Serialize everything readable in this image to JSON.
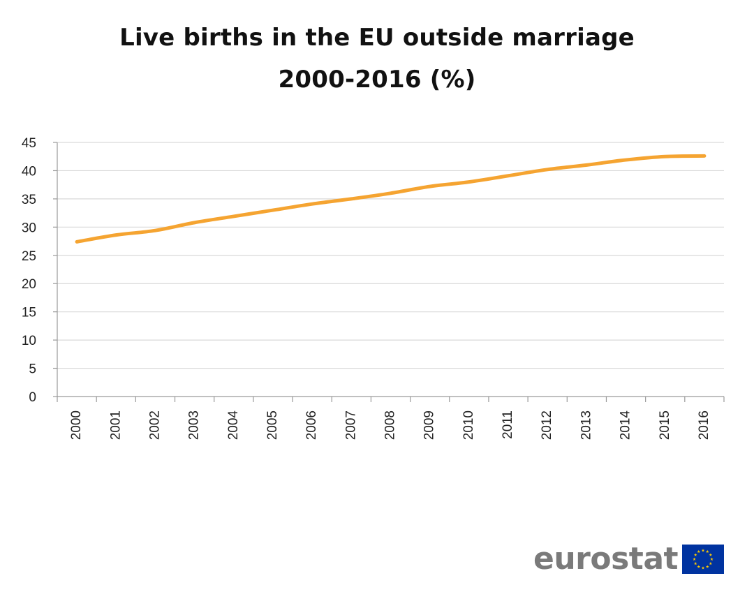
{
  "chart_data": {
    "type": "line",
    "title_line1": "Live births in the EU outside marriage",
    "title_line2": "2000-2016 (%)",
    "categories": [
      "2000",
      "2001",
      "2002",
      "2003",
      "2004",
      "2005",
      "2006",
      "2007",
      "2008",
      "2009",
      "2010",
      "2011",
      "2012",
      "2013",
      "2014",
      "2015",
      "2016"
    ],
    "series": [
      {
        "values": [
          27.4,
          28.6,
          29.4,
          30.8,
          31.9,
          33.0,
          34.1,
          35.0,
          36.0,
          37.2,
          38.0,
          39.1,
          40.2,
          41.0,
          41.9,
          42.5,
          42.6
        ],
        "color": "#f5a431"
      }
    ],
    "ylim": [
      0,
      45
    ],
    "yticks": [
      0,
      5,
      10,
      15,
      20,
      25,
      30,
      35,
      40,
      45
    ],
    "grid": true,
    "legend": "none"
  },
  "branding": {
    "logo_text": "eurostat",
    "flag_icon": "eu-flag-icon",
    "flag_color": "#0033a0",
    "star_color": "#ffcc00"
  }
}
